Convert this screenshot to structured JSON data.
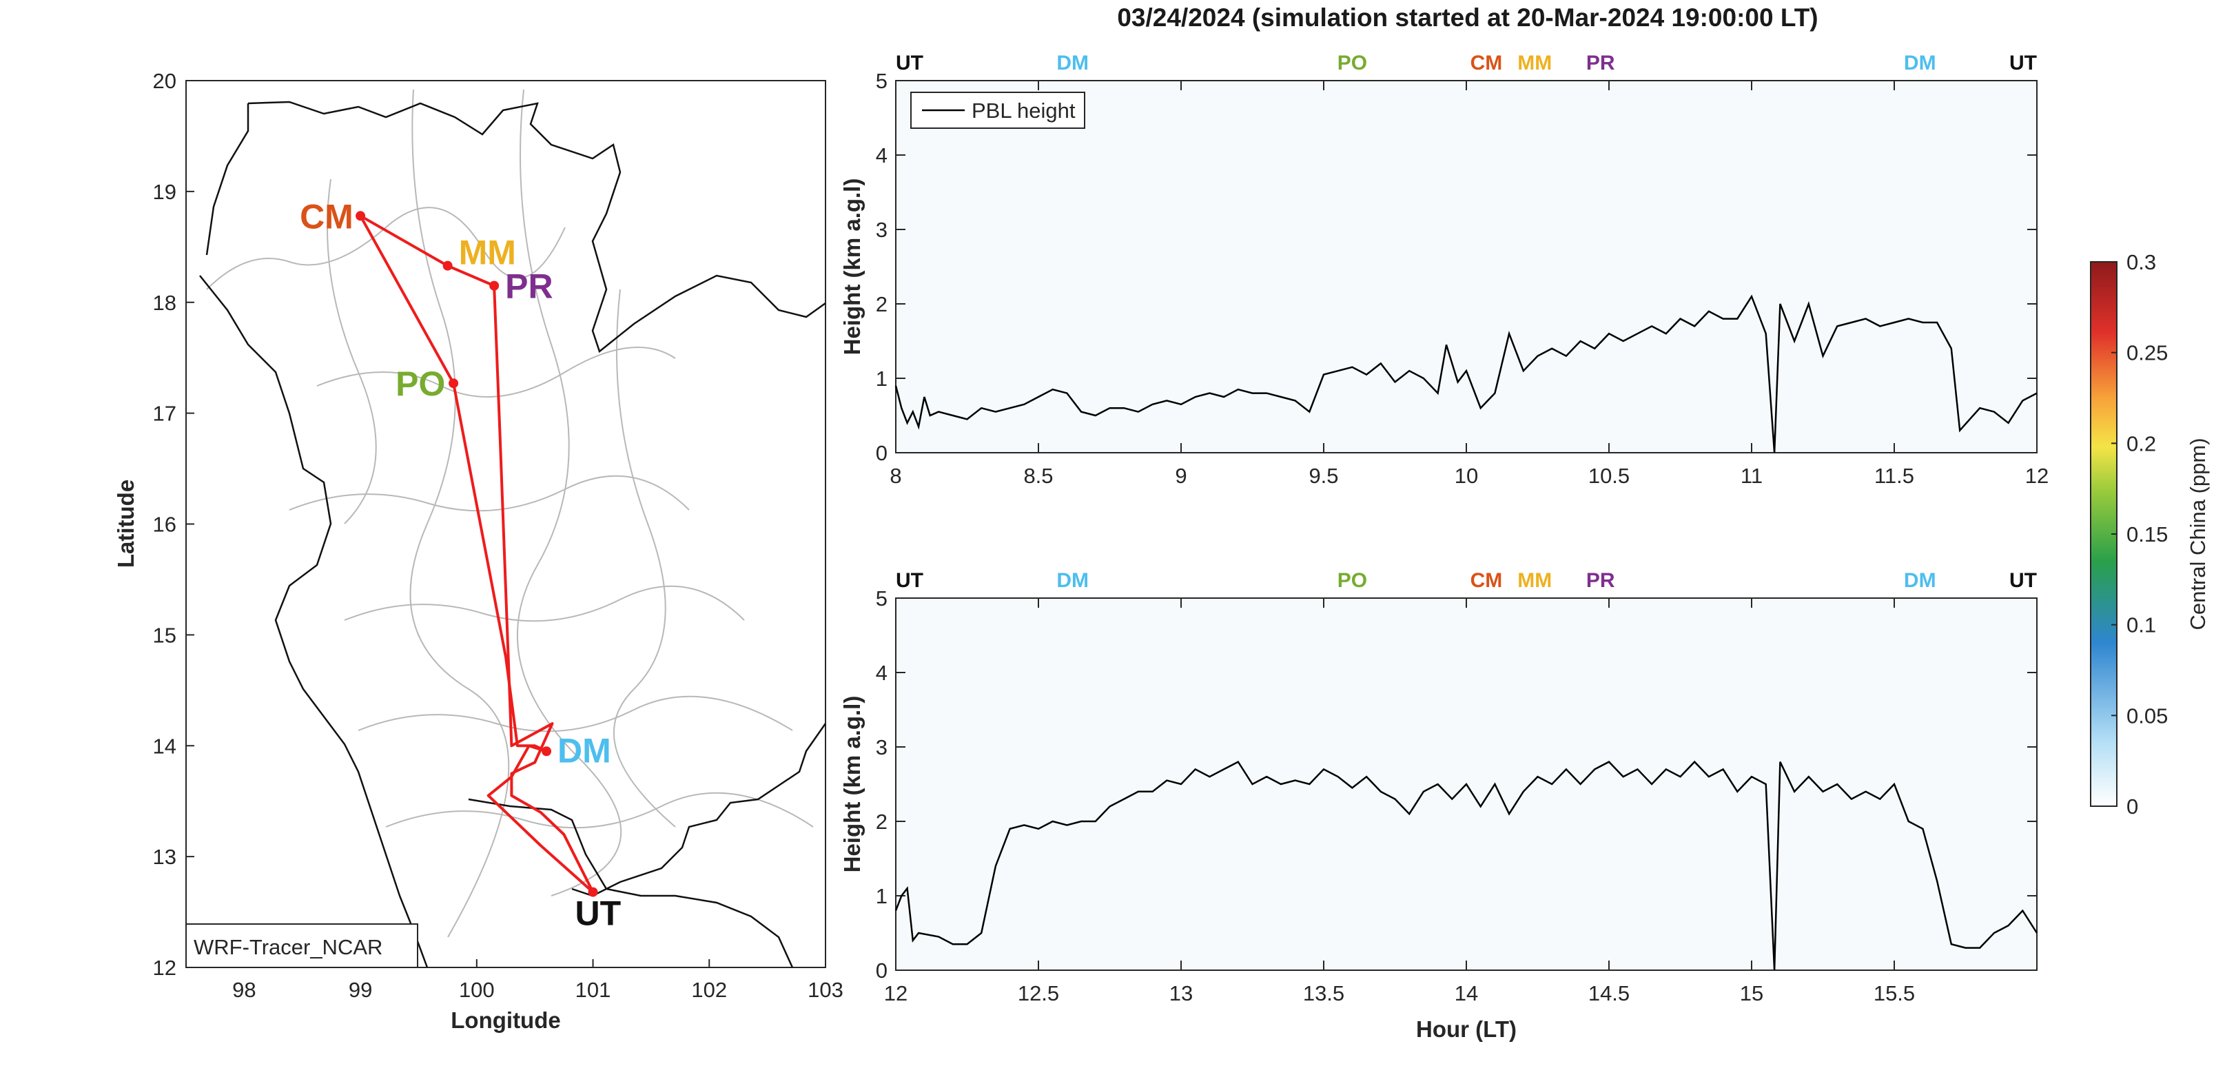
{
  "title": "03/24/2024 (simulation started at 20-Mar-2024 19:00:00 LT)",
  "colors": {
    "route": "#ee1c1c",
    "UT": "#111111",
    "DM": "#4dbeee",
    "PO": "#77ac30",
    "CM": "#d95319",
    "MM": "#edb120",
    "PR": "#7e2f8e"
  },
  "chart_data": [
    {
      "type": "map",
      "name": "route-map",
      "xlabel": "Longitude",
      "ylabel": "Latitude",
      "xlim": [
        97.5,
        103
      ],
      "ylim": [
        12,
        20
      ],
      "xticks": [
        98,
        99,
        100,
        101,
        102,
        103
      ],
      "yticks": [
        12,
        13,
        14,
        15,
        16,
        17,
        18,
        19,
        20
      ],
      "model_label": "WRF-Tracer_NCAR",
      "stations": [
        {
          "code": "CM",
          "lon": 99.0,
          "lat": 18.78
        },
        {
          "code": "MM",
          "lon": 99.75,
          "lat": 18.33
        },
        {
          "code": "PR",
          "lon": 100.15,
          "lat": 18.15
        },
        {
          "code": "PO",
          "lon": 99.8,
          "lat": 17.27
        },
        {
          "code": "DM",
          "lon": 100.6,
          "lat": 13.95
        },
        {
          "code": "UT",
          "lon": 101.0,
          "lat": 12.68
        }
      ],
      "route": [
        [
          101.0,
          12.68
        ],
        [
          100.55,
          13.1
        ],
        [
          100.1,
          13.55
        ],
        [
          100.3,
          13.72
        ],
        [
          100.45,
          14.0
        ],
        [
          100.6,
          13.95
        ],
        [
          100.5,
          14.0
        ],
        [
          100.35,
          14.0
        ],
        [
          100.25,
          14.8
        ],
        [
          99.8,
          17.27
        ],
        [
          99.0,
          18.78
        ],
        [
          99.75,
          18.33
        ],
        [
          100.15,
          18.15
        ],
        [
          100.2,
          16.8
        ],
        [
          100.3,
          14.0
        ],
        [
          100.65,
          14.2
        ],
        [
          100.5,
          13.85
        ],
        [
          100.3,
          13.75
        ],
        [
          100.3,
          13.55
        ],
        [
          100.55,
          13.4
        ],
        [
          100.75,
          13.2
        ],
        [
          101.0,
          12.68
        ]
      ]
    },
    {
      "type": "line",
      "name": "pbl-hour-8-12",
      "xlabel": "",
      "ylabel": "Height (km a.g.l)",
      "xlim": [
        8,
        12
      ],
      "ylim": [
        0,
        5
      ],
      "xticks": [
        8,
        8.5,
        9,
        9.5,
        10,
        10.5,
        11,
        11.5,
        12
      ],
      "yticks": [
        0,
        1,
        2,
        3,
        4,
        5
      ],
      "legend": "PBL height",
      "station_markers": [
        {
          "code": "UT",
          "x": 8.0
        },
        {
          "code": "DM",
          "x": 8.62
        },
        {
          "code": "PO",
          "x": 9.6
        },
        {
          "code": "CM",
          "x": 10.07
        },
        {
          "code": "MM",
          "x": 10.3
        },
        {
          "code": "PR",
          "x": 10.42
        },
        {
          "code": "DM",
          "x": 11.59
        },
        {
          "code": "UT",
          "x": 12.0
        }
      ],
      "series": [
        {
          "values": [
            [
              8.0,
              0.9
            ],
            [
              8.02,
              0.6
            ],
            [
              8.04,
              0.4
            ],
            [
              8.06,
              0.55
            ],
            [
              8.08,
              0.35
            ],
            [
              8.1,
              0.75
            ],
            [
              8.12,
              0.5
            ],
            [
              8.15,
              0.55
            ],
            [
              8.2,
              0.5
            ],
            [
              8.25,
              0.45
            ],
            [
              8.3,
              0.6
            ],
            [
              8.35,
              0.55
            ],
            [
              8.4,
              0.6
            ],
            [
              8.45,
              0.65
            ],
            [
              8.5,
              0.75
            ],
            [
              8.55,
              0.85
            ],
            [
              8.6,
              0.8
            ],
            [
              8.65,
              0.55
            ],
            [
              8.7,
              0.5
            ],
            [
              8.75,
              0.6
            ],
            [
              8.8,
              0.6
            ],
            [
              8.85,
              0.55
            ],
            [
              8.9,
              0.65
            ],
            [
              8.95,
              0.7
            ],
            [
              9.0,
              0.65
            ],
            [
              9.05,
              0.75
            ],
            [
              9.1,
              0.8
            ],
            [
              9.15,
              0.75
            ],
            [
              9.2,
              0.85
            ],
            [
              9.25,
              0.8
            ],
            [
              9.3,
              0.8
            ],
            [
              9.35,
              0.75
            ],
            [
              9.4,
              0.7
            ],
            [
              9.45,
              0.55
            ],
            [
              9.5,
              1.05
            ],
            [
              9.55,
              1.1
            ],
            [
              9.6,
              1.15
            ],
            [
              9.65,
              1.05
            ],
            [
              9.7,
              1.2
            ],
            [
              9.75,
              0.95
            ],
            [
              9.8,
              1.1
            ],
            [
              9.85,
              1.0
            ],
            [
              9.9,
              0.8
            ],
            [
              9.93,
              1.45
            ],
            [
              9.97,
              0.95
            ],
            [
              10.0,
              1.1
            ],
            [
              10.05,
              0.6
            ],
            [
              10.1,
              0.8
            ],
            [
              10.15,
              1.6
            ],
            [
              10.2,
              1.1
            ],
            [
              10.25,
              1.3
            ],
            [
              10.3,
              1.4
            ],
            [
              10.35,
              1.3
            ],
            [
              10.4,
              1.5
            ],
            [
              10.45,
              1.4
            ],
            [
              10.5,
              1.6
            ],
            [
              10.55,
              1.5
            ],
            [
              10.6,
              1.6
            ],
            [
              10.65,
              1.7
            ],
            [
              10.7,
              1.6
            ],
            [
              10.75,
              1.8
            ],
            [
              10.8,
              1.7
            ],
            [
              10.85,
              1.9
            ],
            [
              10.9,
              1.8
            ],
            [
              10.95,
              1.8
            ],
            [
              11.0,
              2.1
            ],
            [
              11.05,
              1.6
            ],
            [
              11.08,
              0.0
            ],
            [
              11.1,
              2.0
            ],
            [
              11.15,
              1.5
            ],
            [
              11.2,
              2.0
            ],
            [
              11.25,
              1.3
            ],
            [
              11.3,
              1.7
            ],
            [
              11.35,
              1.75
            ],
            [
              11.4,
              1.8
            ],
            [
              11.45,
              1.7
            ],
            [
              11.5,
              1.75
            ],
            [
              11.55,
              1.8
            ],
            [
              11.6,
              1.75
            ],
            [
              11.65,
              1.75
            ],
            [
              11.7,
              1.4
            ],
            [
              11.73,
              0.3
            ],
            [
              11.8,
              0.6
            ],
            [
              11.85,
              0.55
            ],
            [
              11.9,
              0.4
            ],
            [
              11.95,
              0.7
            ],
            [
              12.0,
              0.8
            ]
          ]
        }
      ]
    },
    {
      "type": "line",
      "name": "pbl-hour-12-16",
      "xlabel": "Hour (LT)",
      "ylabel": "Height (km a.g.l)",
      "xlim": [
        12,
        16
      ],
      "ylim": [
        0,
        5
      ],
      "xticks": [
        12,
        12.5,
        13,
        13.5,
        14,
        14.5,
        15,
        15.5
      ],
      "yticks": [
        0,
        1,
        2,
        3,
        4,
        5
      ],
      "station_markers": [
        {
          "code": "UT",
          "x": 12.0
        },
        {
          "code": "DM",
          "x": 12.62
        },
        {
          "code": "PO",
          "x": 13.6
        },
        {
          "code": "CM",
          "x": 14.07
        },
        {
          "code": "MM",
          "x": 14.3
        },
        {
          "code": "PR",
          "x": 14.42
        },
        {
          "code": "DM",
          "x": 15.59
        },
        {
          "code": "UT",
          "x": 16.0
        }
      ],
      "series": [
        {
          "values": [
            [
              12.0,
              0.8
            ],
            [
              12.02,
              1.0
            ],
            [
              12.04,
              1.1
            ],
            [
              12.06,
              0.4
            ],
            [
              12.08,
              0.5
            ],
            [
              12.15,
              0.45
            ],
            [
              12.2,
              0.35
            ],
            [
              12.25,
              0.35
            ],
            [
              12.3,
              0.5
            ],
            [
              12.35,
              1.4
            ],
            [
              12.4,
              1.9
            ],
            [
              12.45,
              1.95
            ],
            [
              12.5,
              1.9
            ],
            [
              12.55,
              2.0
            ],
            [
              12.6,
              1.95
            ],
            [
              12.65,
              2.0
            ],
            [
              12.7,
              2.0
            ],
            [
              12.75,
              2.2
            ],
            [
              12.8,
              2.3
            ],
            [
              12.85,
              2.4
            ],
            [
              12.9,
              2.4
            ],
            [
              12.95,
              2.55
            ],
            [
              13.0,
              2.5
            ],
            [
              13.05,
              2.7
            ],
            [
              13.1,
              2.6
            ],
            [
              13.15,
              2.7
            ],
            [
              13.2,
              2.8
            ],
            [
              13.25,
              2.5
            ],
            [
              13.3,
              2.6
            ],
            [
              13.35,
              2.5
            ],
            [
              13.4,
              2.55
            ],
            [
              13.45,
              2.5
            ],
            [
              13.5,
              2.7
            ],
            [
              13.55,
              2.6
            ],
            [
              13.6,
              2.45
            ],
            [
              13.65,
              2.6
            ],
            [
              13.7,
              2.4
            ],
            [
              13.75,
              2.3
            ],
            [
              13.8,
              2.1
            ],
            [
              13.85,
              2.4
            ],
            [
              13.9,
              2.5
            ],
            [
              13.95,
              2.3
            ],
            [
              14.0,
              2.5
            ],
            [
              14.05,
              2.2
            ],
            [
              14.1,
              2.5
            ],
            [
              14.15,
              2.1
            ],
            [
              14.2,
              2.4
            ],
            [
              14.25,
              2.6
            ],
            [
              14.3,
              2.5
            ],
            [
              14.35,
              2.7
            ],
            [
              14.4,
              2.5
            ],
            [
              14.45,
              2.7
            ],
            [
              14.5,
              2.8
            ],
            [
              14.55,
              2.6
            ],
            [
              14.6,
              2.7
            ],
            [
              14.65,
              2.5
            ],
            [
              14.7,
              2.7
            ],
            [
              14.75,
              2.6
            ],
            [
              14.8,
              2.8
            ],
            [
              14.85,
              2.6
            ],
            [
              14.9,
              2.7
            ],
            [
              14.95,
              2.4
            ],
            [
              15.0,
              2.6
            ],
            [
              15.05,
              2.5
            ],
            [
              15.08,
              0.0
            ],
            [
              15.1,
              2.8
            ],
            [
              15.15,
              2.4
            ],
            [
              15.2,
              2.6
            ],
            [
              15.25,
              2.4
            ],
            [
              15.3,
              2.5
            ],
            [
              15.35,
              2.3
            ],
            [
              15.4,
              2.4
            ],
            [
              15.45,
              2.3
            ],
            [
              15.5,
              2.5
            ],
            [
              15.55,
              2.0
            ],
            [
              15.6,
              1.9
            ],
            [
              15.65,
              1.2
            ],
            [
              15.7,
              0.35
            ],
            [
              15.75,
              0.3
            ],
            [
              15.8,
              0.3
            ],
            [
              15.85,
              0.5
            ],
            [
              15.9,
              0.6
            ],
            [
              15.95,
              0.8
            ],
            [
              16.0,
              0.5
            ]
          ]
        }
      ]
    },
    {
      "type": "heatmap",
      "name": "colorbar",
      "label": "Central China (ppm)",
      "range": [
        0,
        0.3
      ],
      "ticks": [
        0,
        0.05,
        0.1,
        0.15,
        0.2,
        0.25,
        0.3
      ],
      "tick_labels": [
        "0",
        "0.05",
        "0.1",
        "0.15",
        "0.2",
        "0.25",
        "0.3"
      ]
    }
  ]
}
